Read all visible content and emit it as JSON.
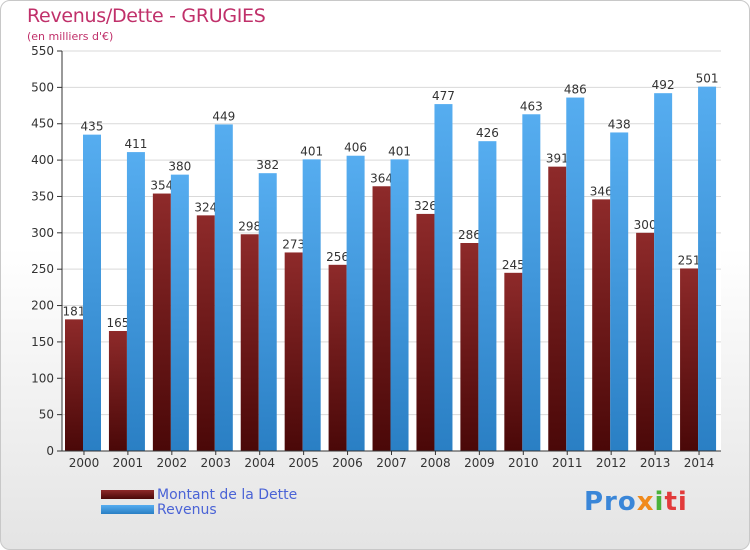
{
  "chart_data": {
    "type": "bar",
    "title": "Revenus/Dette - GRUGIES",
    "subtitle": "(en milliers d'€)",
    "categories": [
      "2000",
      "2001",
      "2002",
      "2003",
      "2004",
      "2005",
      "2006",
      "2007",
      "2008",
      "2009",
      "2010",
      "2011",
      "2012",
      "2013",
      "2014"
    ],
    "series": [
      {
        "name": "Montant de la Dette",
        "color": "#7a1f1f",
        "values": [
          181,
          165,
          354,
          324,
          298,
          273,
          256,
          364,
          326,
          286,
          245,
          391,
          346,
          300,
          251
        ]
      },
      {
        "name": "Revenus",
        "color": "#3f97dc",
        "values": [
          435,
          411,
          380,
          449,
          382,
          401,
          406,
          401,
          477,
          426,
          463,
          486,
          438,
          492,
          501
        ]
      }
    ],
    "ylim": [
      0,
      550
    ],
    "yticks": [
      0,
      50,
      100,
      150,
      200,
      250,
      300,
      350,
      400,
      450,
      500,
      550
    ],
    "grid": true,
    "legend": "bottom-left"
  },
  "logo": {
    "text": "Proxiti",
    "parts": [
      "Pro",
      "x",
      "i",
      "ti"
    ]
  }
}
